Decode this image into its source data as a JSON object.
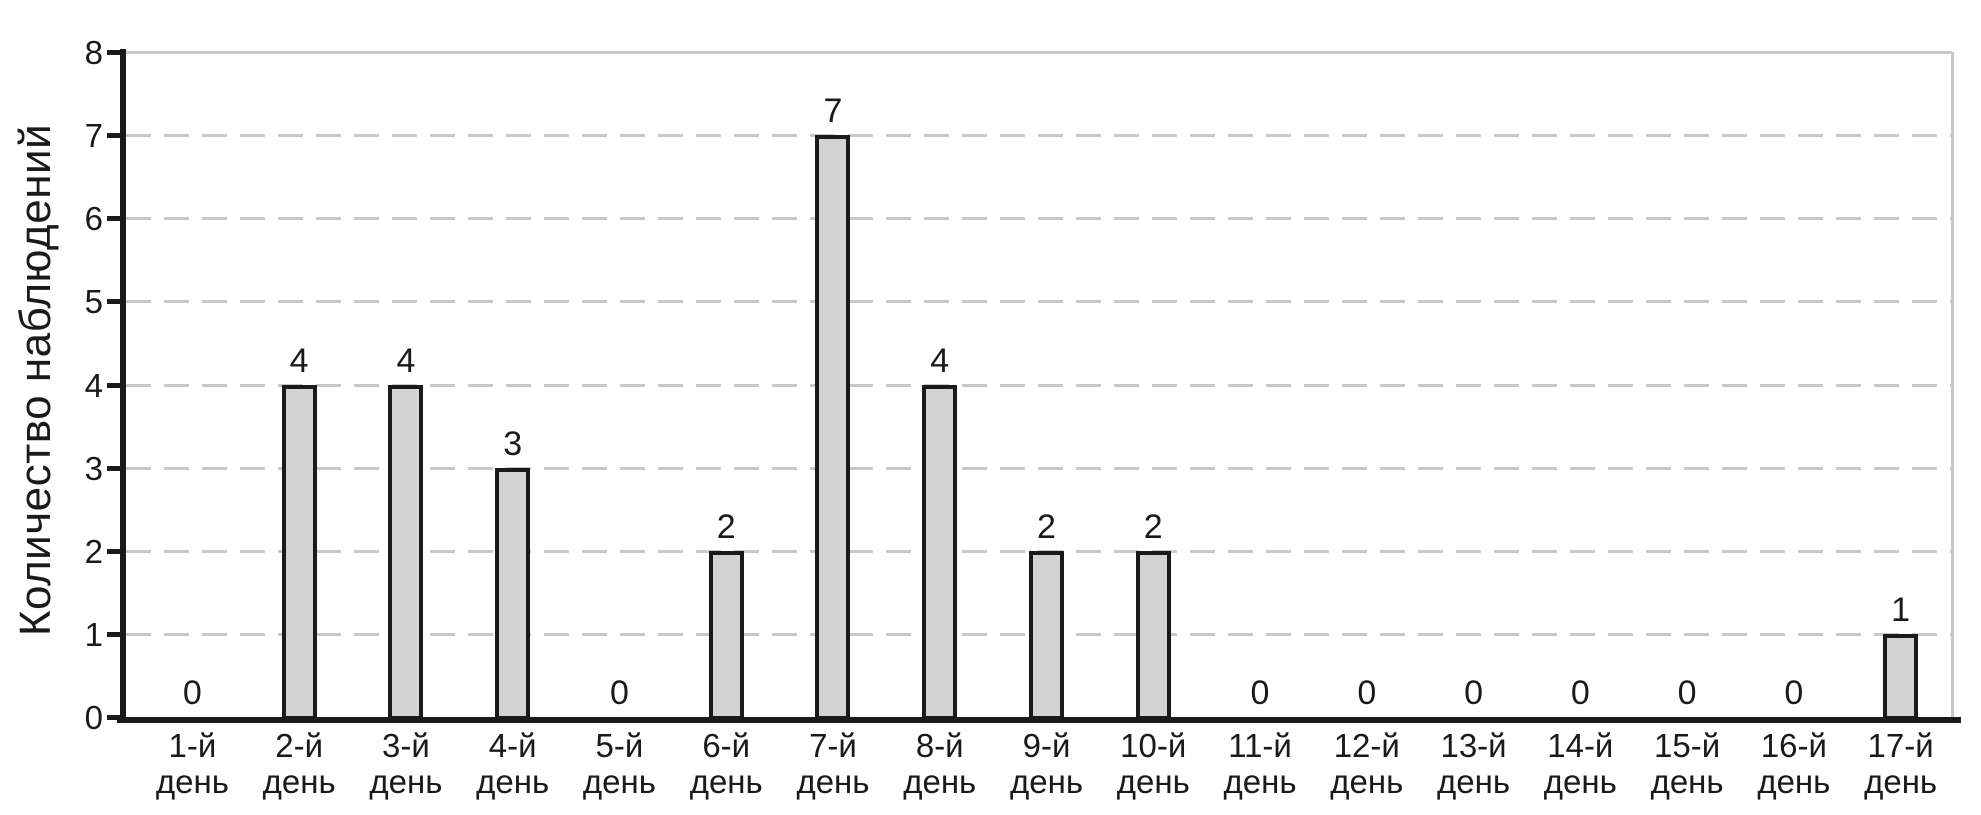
{
  "chart_data": {
    "type": "bar",
    "title": "",
    "ylabel": "Количество наблюдений",
    "xlabel": "",
    "categories": [
      "1-й день",
      "2-й день",
      "3-й день",
      "4-й день",
      "5-й день",
      "6-й день",
      "7-й день",
      "8-й день",
      "9-й день",
      "10-й день",
      "11-й день",
      "12-й день",
      "13-й день",
      "14-й день",
      "15-й день",
      "16-й день",
      "17-й день"
    ],
    "values": [
      0,
      4,
      4,
      3,
      0,
      2,
      7,
      4,
      2,
      2,
      0,
      0,
      0,
      0,
      0,
      0,
      1
    ],
    "value_labels": [
      "0",
      "4",
      "4",
      "3",
      "0",
      "2",
      "7",
      "4",
      "2",
      "2",
      "0",
      "0",
      "0",
      "0",
      "0",
      "0",
      "1"
    ],
    "ylim": [
      0,
      8
    ],
    "yticks": [
      "0",
      "1",
      "2",
      "3",
      "4",
      "5",
      "6",
      "7",
      "8"
    ],
    "grid": "horizontal-dashed",
    "legend": "none",
    "colors": {
      "bar_fill": "#d3d3d3",
      "bar_border": "#1a1a1a",
      "gridline": "#c8c8c8",
      "axis": "#1a1a1a",
      "text": "#1a1a1a",
      "background": "#ffffff"
    }
  }
}
